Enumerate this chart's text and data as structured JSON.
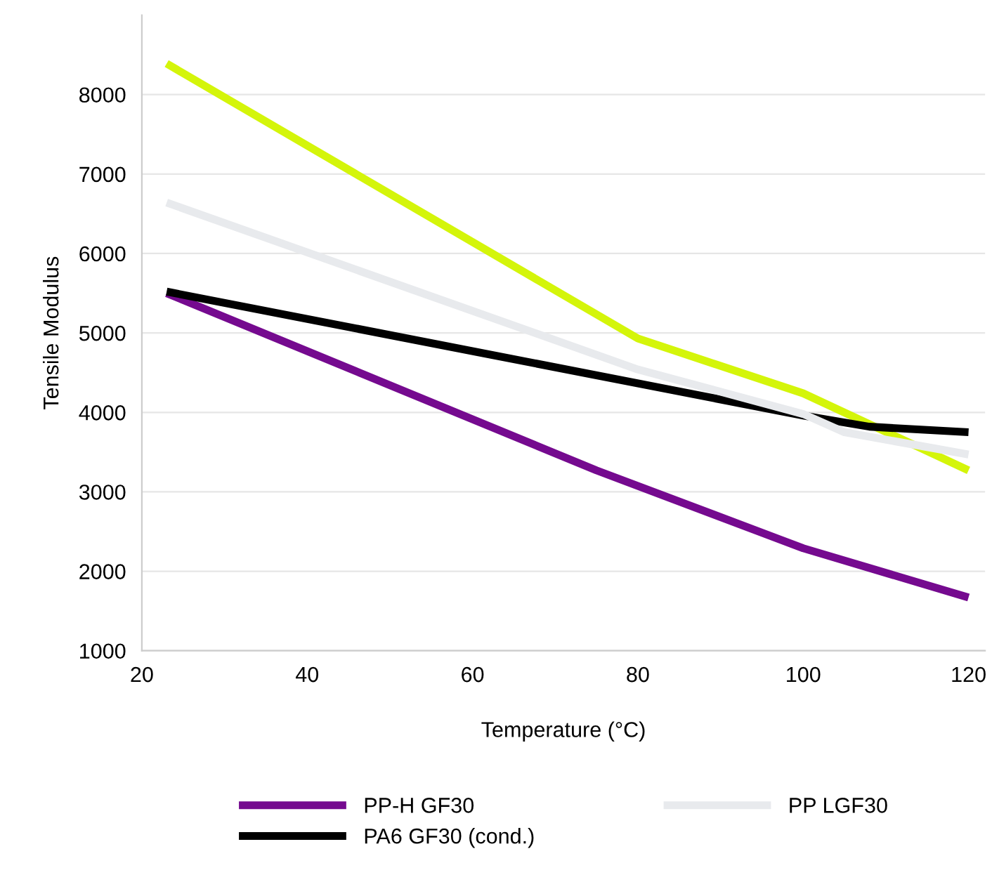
{
  "chart_data": {
    "type": "line",
    "xlabel": "Temperature (°C)",
    "ylabel": "Tensile Modulus",
    "xlim": [
      20,
      122
    ],
    "xticks": [
      20,
      40,
      60,
      80,
      100,
      120
    ],
    "ylim": [
      1000,
      9000
    ],
    "yticks": [
      1000,
      2000,
      3000,
      4000,
      5000,
      6000,
      7000,
      8000
    ],
    "grid": "y",
    "legend": "bottom",
    "line_style": "solid",
    "marker": "none",
    "series": [
      {
        "color": "#d4f50a",
        "x": [
          23,
          80,
          100,
          120
        ],
        "values": [
          8390,
          4930,
          4240,
          3270
        ]
      },
      {
        "name": "PP-H GF30",
        "color": "#750a8f",
        "x": [
          23,
          75,
          100,
          120
        ],
        "values": [
          5500,
          3270,
          2290,
          1670
        ]
      },
      {
        "name": "PA6 GF30 (cond.)",
        "color": "#000000",
        "x": [
          23,
          100,
          108,
          120
        ],
        "values": [
          5520,
          3960,
          3820,
          3750
        ]
      },
      {
        "name": "PP LGF30",
        "color": "#e8eaed",
        "x": [
          23,
          80,
          100,
          105,
          120
        ],
        "values": [
          6640,
          4540,
          3980,
          3750,
          3470
        ]
      }
    ]
  }
}
